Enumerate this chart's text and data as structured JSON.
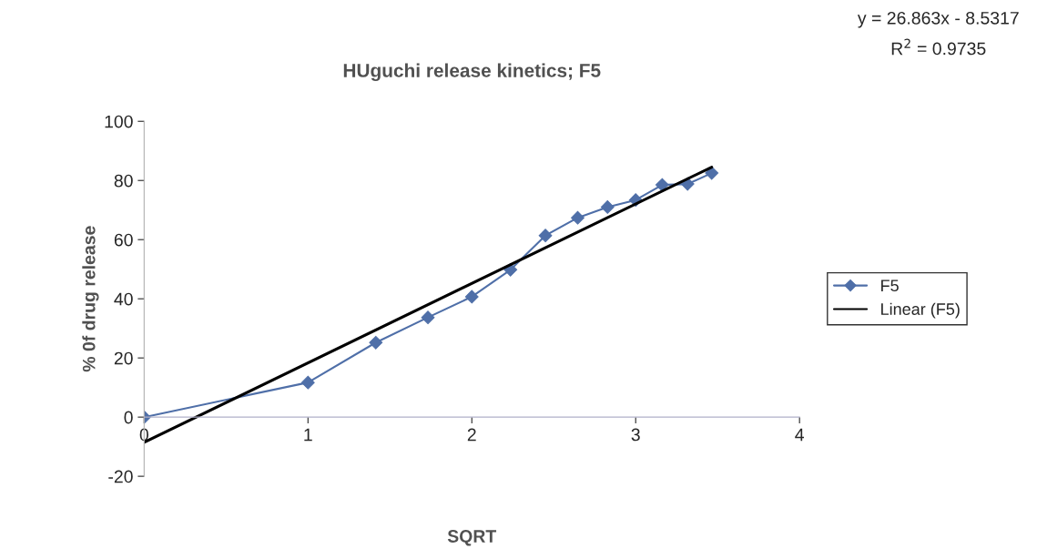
{
  "chart_data": {
    "type": "line",
    "title": "HUguchi release kinetics; F5",
    "xlabel": "SQRT",
    "ylabel": "% 0f drug release",
    "annotations": [
      "y = 26.863x - 8.5317",
      "R$^{2}$ = 0.9735"
    ],
    "x": [
      0,
      1,
      1.414,
      1.732,
      2,
      2.236,
      2.449,
      2.646,
      2.828,
      3,
      3.162,
      3.317,
      3.464
    ],
    "series": [
      {
        "name": "F5",
        "color": "#4f6fa8",
        "marker": "diamond",
        "values": [
          0,
          11.7,
          25.2,
          33.7,
          40.7,
          49.8,
          61.4,
          67.4,
          71.0,
          73.4,
          78.5,
          78.8,
          82.5
        ]
      },
      {
        "name": "Linear (F5)",
        "color": "#000000",
        "marker": "none",
        "x": [
          0,
          3.464
        ],
        "values": [
          -8.53,
          84.52
        ]
      }
    ],
    "xlim": [
      0,
      4
    ],
    "xticks": [
      0,
      1,
      2,
      3,
      4
    ],
    "ylim": [
      -20,
      100
    ],
    "yticks": [
      -20,
      0,
      20,
      40,
      60,
      80,
      100
    ],
    "grid": false,
    "legend": "right",
    "line_style": "solid"
  }
}
